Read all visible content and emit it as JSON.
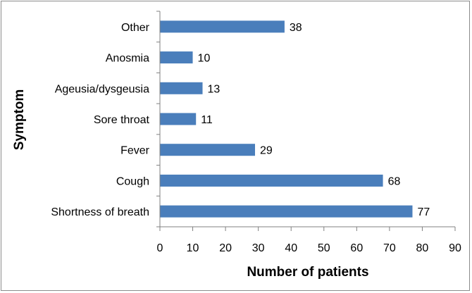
{
  "chart_data": {
    "type": "bar",
    "orientation": "horizontal",
    "categories": [
      "Other",
      "Anosmia",
      "Ageusia/dysgeusia",
      "Sore throat",
      "Fever",
      "Cough",
      "Shortness of breath"
    ],
    "values": [
      38,
      10,
      13,
      11,
      29,
      68,
      77
    ],
    "xlabel": "Number of patients",
    "ylabel": "Symptom",
    "xlim": [
      0,
      90
    ],
    "xticks": [
      0,
      10,
      20,
      30,
      40,
      50,
      60,
      70,
      80,
      90
    ],
    "grid": false,
    "bar_color": "#4a7ebb",
    "data_labels": true
  }
}
